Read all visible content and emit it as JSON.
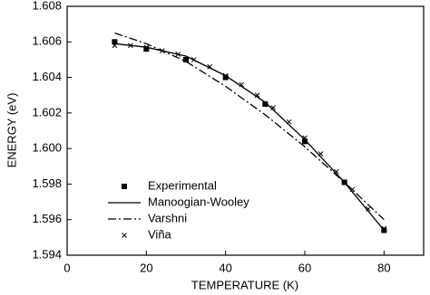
{
  "chart_data": {
    "type": "line",
    "x_label": "TEMPERATURE (K)",
    "y_label": "ENERGY (eV)",
    "xlim": [
      0,
      90
    ],
    "xticks": [
      0,
      20,
      40,
      60,
      80
    ],
    "ylim": [
      1.594,
      1.608
    ],
    "yticks": [
      1.594,
      1.596,
      1.598,
      {
        "value": 1.6,
        "label": "1.600"
      },
      1.602,
      1.604,
      1.606,
      1.608
    ],
    "legend": "lower left",
    "series": [
      {
        "name": "Experimental",
        "color": "#000000",
        "marker": "square",
        "line": "none",
        "x": [
          12,
          20,
          30,
          40,
          50,
          60,
          70,
          80
        ],
        "values": [
          1.606,
          1.6056,
          1.605,
          1.604,
          1.6025,
          1.6004,
          1.5981,
          1.5954
        ]
      },
      {
        "name": "Manoogian-Wooley",
        "color": "#000000",
        "marker": "none",
        "line": "solid",
        "x": [
          12,
          20,
          30,
          40,
          50,
          60,
          70,
          80
        ],
        "values": [
          1.6059,
          1.6057,
          1.6052,
          1.6041,
          1.6026,
          1.6005,
          1.5981,
          1.5954
        ]
      },
      {
        "name": "Varshni",
        "color": "#000000",
        "marker": "none",
        "line": "dashdot",
        "x": [
          12,
          20,
          30,
          40,
          50,
          60,
          70,
          80
        ],
        "values": [
          1.6065,
          1.6059,
          1.6049,
          1.6035,
          1.6019,
          1.6001,
          1.5981,
          1.596
        ]
      },
      {
        "name": "Viña",
        "color": "#000000",
        "marker": "x",
        "line": "none",
        "x": [
          12,
          16,
          20,
          24,
          28,
          32,
          36,
          40,
          44,
          48,
          52,
          56,
          60,
          64,
          68,
          72,
          76,
          80
        ],
        "values": [
          1.6058,
          1.6058,
          1.6057,
          1.6055,
          1.6053,
          1.605,
          1.6046,
          1.6041,
          1.6036,
          1.603,
          1.6023,
          1.6015,
          1.6006,
          1.5997,
          1.5987,
          1.5977,
          1.5966,
          1.5955
        ]
      }
    ]
  }
}
